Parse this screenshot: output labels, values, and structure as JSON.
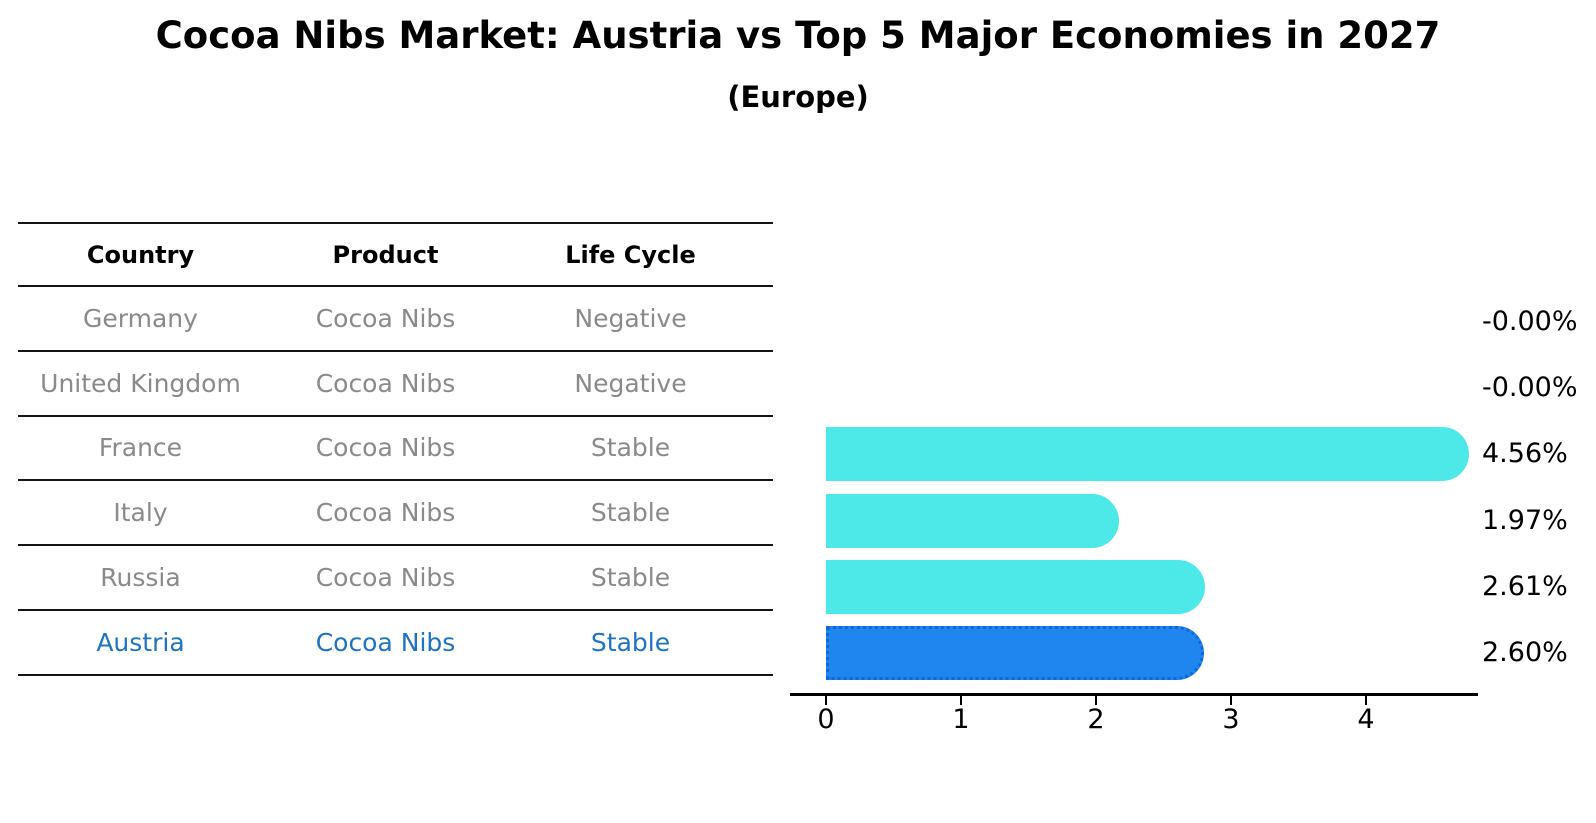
{
  "title": "Cocoa Nibs Market: Austria vs Top 5 Major Economies in 2027",
  "subtitle": "(Europe)",
  "table": {
    "headers": [
      "Country",
      "Product",
      "Life Cycle"
    ],
    "rows": [
      {
        "country": "Germany",
        "product": "Cocoa Nibs",
        "life_cycle": "Negative",
        "highlight": false
      },
      {
        "country": "United Kingdom",
        "product": "Cocoa Nibs",
        "life_cycle": "Negative",
        "highlight": false
      },
      {
        "country": "France",
        "product": "Cocoa Nibs",
        "life_cycle": "Stable",
        "highlight": false
      },
      {
        "country": "Italy",
        "product": "Cocoa Nibs",
        "life_cycle": "Stable",
        "highlight": false
      },
      {
        "country": "Russia",
        "product": "Cocoa Nibs",
        "life_cycle": "Stable",
        "highlight": false
      },
      {
        "country": "Austria",
        "product": "Cocoa Nibs",
        "life_cycle": "Stable",
        "highlight": true
      }
    ]
  },
  "chart_data": {
    "type": "bar",
    "orientation": "horizontal",
    "title": "Cocoa Nibs Market: Austria vs Top 5 Major Economies in 2027",
    "subtitle": "(Europe)",
    "categories": [
      "Germany",
      "United Kingdom",
      "France",
      "Italy",
      "Russia",
      "Austria"
    ],
    "values": [
      -0.0,
      -0.0,
      4.56,
      1.97,
      2.61,
      2.6
    ],
    "value_labels": [
      "-0.00%",
      "-0.00%",
      "4.56%",
      "1.97%",
      "2.61%",
      "2.60%"
    ],
    "x_ticks": [
      0,
      1,
      2,
      3,
      4
    ],
    "xlim": [
      -0.26,
      4.78
    ],
    "xlabel": "",
    "ylabel": "",
    "grid": false,
    "legend": false,
    "highlight_category": "Austria",
    "bar_color": "#4de8e8",
    "highlight_bar_color": "#1e86ee",
    "highlight_bar_edge_color": "#1166d8",
    "highlight_text_color": "#1e73c2",
    "axis_color": "#000000",
    "table_text_color": "#8a8a8a"
  }
}
